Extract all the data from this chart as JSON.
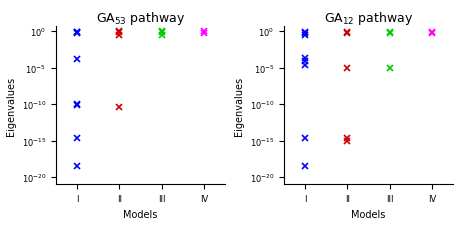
{
  "title1_sub": "53",
  "title2_sub": "12",
  "title_suffix": " pathway",
  "xlabel": "Models",
  "ylabel": "Eigenvalues",
  "ylim_min": 1e-21,
  "ylim_max": 5.0,
  "xtick_labels": [
    "I",
    "II",
    "III",
    "IV"
  ],
  "xtick_pos": [
    1,
    2,
    3,
    4
  ],
  "plot1_data": {
    "I": {
      "color": "#0000ff",
      "values": [
        0.9,
        0.75,
        0.6,
        0.00015,
        1e-10,
        8e-11,
        2e-15,
        3e-19
      ]
    },
    "II": {
      "color": "#cc0000",
      "values": [
        1.1,
        0.85,
        0.3,
        4e-11
      ]
    },
    "III": {
      "color": "#00cc00",
      "values": [
        1.0,
        0.8,
        0.3
      ]
    },
    "IV": {
      "color": "#ff00ff",
      "values": [
        1.1,
        0.5
      ]
    }
  },
  "plot2_data": {
    "I": {
      "color": "#0000ff",
      "values": [
        0.8,
        0.6,
        0.3,
        0.0002,
        8e-05,
        2e-05,
        2e-15,
        3e-19
      ]
    },
    "II": {
      "color": "#cc0000",
      "values": [
        0.8,
        0.6,
        9e-06,
        2e-15,
        8e-16
      ]
    },
    "III": {
      "color": "#00cc00",
      "values": [
        0.7,
        0.5,
        8e-06
      ]
    },
    "IV": {
      "color": "#ff00ff",
      "values": [
        0.7,
        0.5
      ]
    }
  },
  "background": "#ffffff",
  "marker": "x",
  "markersize": 4,
  "linewidth": 1.2,
  "title_fontsize": 9,
  "label_fontsize": 7,
  "tick_fontsize": 6
}
